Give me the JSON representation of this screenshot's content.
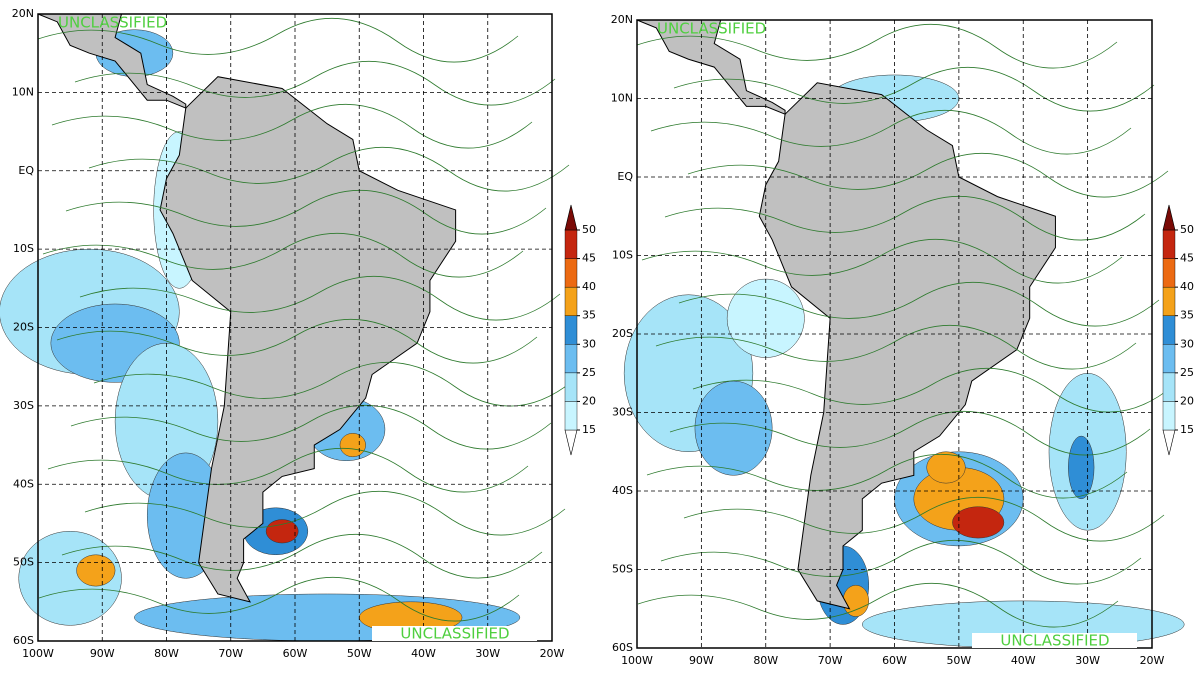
{
  "panels": [
    {
      "lat_labels": [
        "20N",
        "10N",
        "EQ",
        "10S",
        "20S",
        "30S",
        "40S",
        "50S",
        "60S"
      ],
      "lon_labels": [
        "100W",
        "90W",
        "80W",
        "70W",
        "60W",
        "50W",
        "40W",
        "30W",
        "20W"
      ],
      "classification_top": "UNCLASSIFIED",
      "classification_bottom": "UNCLASSIFIED",
      "colorbar": {
        "levels": [
          15,
          20,
          25,
          30,
          35,
          40,
          45,
          50
        ]
      }
    },
    {
      "lat_labels": [
        "20N",
        "10N",
        "EQ",
        "10S",
        "20S",
        "30S",
        "40S",
        "50S",
        "60S"
      ],
      "lon_labels": [
        "100W",
        "90W",
        "80W",
        "70W",
        "60W",
        "50W",
        "40W",
        "30W",
        "20W"
      ],
      "classification_top": "UNCLASSIFIED",
      "classification_bottom": "UNCLASSIFIED",
      "colorbar": {
        "levels": [
          15,
          20,
          25,
          30,
          35,
          40,
          45,
          50
        ]
      }
    }
  ],
  "colorbar_colors": [
    "#ffffff",
    "#c8f5ff",
    "#a6e4f8",
    "#6cbdf0",
    "#2f8ed6",
    "#f4a21a",
    "#ec6a12",
    "#c4260f",
    "#7a0a06"
  ]
}
